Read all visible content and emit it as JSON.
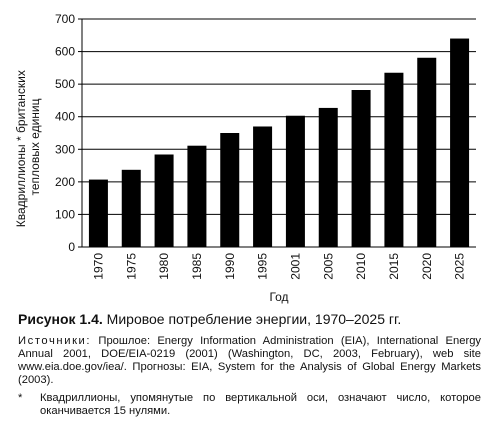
{
  "chart_data": {
    "type": "bar",
    "categories": [
      "1970",
      "1975",
      "1980",
      "1985",
      "1990",
      "1995",
      "2001",
      "2005",
      "2010",
      "2015",
      "2020",
      "2025"
    ],
    "values": [
      207,
      237,
      284,
      311,
      350,
      370,
      403,
      427,
      482,
      535,
      581,
      640
    ],
    "xlabel": "Год",
    "ylabel_lines": [
      "Квадриллионы * британских",
      "тепловых единиц"
    ],
    "ylim": [
      0,
      700
    ],
    "yticks": [
      0,
      100,
      200,
      300,
      400,
      500,
      600,
      700
    ],
    "grid": true,
    "bar_color": "#000000",
    "grid_color": "#000000"
  },
  "caption": {
    "label": "Рисунок 1.4.",
    "text": "Мировое потребление энергии, 1970–2025 гг."
  },
  "source": {
    "label": "Источники:",
    "text": "Прошлое: Energy Information Administration (EIA), International Energy Annual 2001, DOE/EIA-0219 (2001) (Washington, DC, 2003, February), web site www.eia.doe.gov/iea/. Прогнозы: EIA, System for the Analysis of Global Energy Markets (2003)."
  },
  "footnote": {
    "marker": "*",
    "text": "Квадриллионы, упомянутые по вертикальной оси, означают число, которое оканчивается 15 нулями."
  }
}
